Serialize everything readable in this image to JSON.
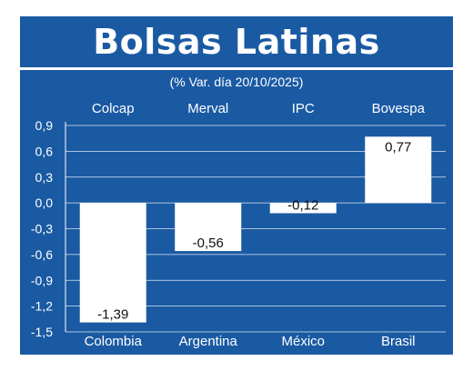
{
  "colors": {
    "background": "#1a5aa3",
    "bar": "#ffffff",
    "text": "#ffffff",
    "value_text": "#111111"
  },
  "chart_data": {
    "type": "bar",
    "title": "Bolsas Latinas",
    "subtitle": "(% Var. día 20/10/2025)",
    "categories": [
      "Colombia",
      "Argentina",
      "México",
      "Brasil"
    ],
    "series_labels": [
      "Colcap",
      "Merval",
      "IPC",
      "Bovespa"
    ],
    "values": [
      -1.39,
      -0.56,
      -0.12,
      0.77
    ],
    "value_labels": [
      "-1,39",
      "-0,56",
      "-0,12",
      "0,77"
    ],
    "ylim": [
      -1.5,
      0.9
    ],
    "yticks": [
      0.9,
      0.6,
      0.3,
      0.0,
      -0.3,
      -0.6,
      -0.9,
      -1.2,
      -1.5
    ],
    "ytick_labels": [
      "0,9",
      "0,6",
      "0,3",
      "0,0",
      "-0,3",
      "-0,6",
      "-0,9",
      "-1,2",
      "-1,5"
    ],
    "grid": true,
    "xlabel": "",
    "ylabel": ""
  }
}
